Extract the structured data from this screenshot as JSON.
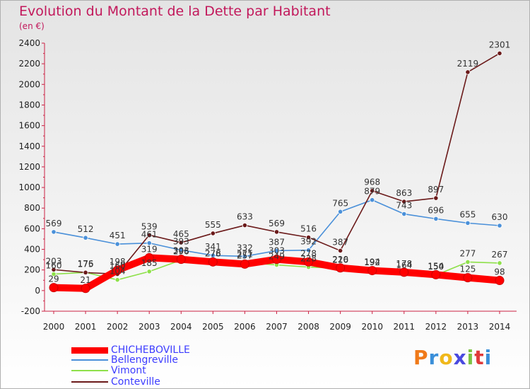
{
  "title": "Evolution du Montant de la Dette par Habitant",
  "subtitle": "(en €)",
  "logo_text": "Proxiti",
  "chart_data": {
    "type": "line",
    "title": "Evolution du Montant de la Dette par Habitant",
    "subtitle": "(en €)",
    "xlabel": "",
    "ylabel": "",
    "x": [
      "2000",
      "2001",
      "2002",
      "2003",
      "2004",
      "2005",
      "2006",
      "2007",
      "2008",
      "2009",
      "2010",
      "2011",
      "2012",
      "2013",
      "2014"
    ],
    "ylim": [
      -200,
      2400
    ],
    "yticks": [
      -200,
      0,
      200,
      400,
      600,
      800,
      1000,
      1200,
      1400,
      1600,
      1800,
      2000,
      2200,
      2400
    ],
    "grid": false,
    "legend_position": "bottom-left",
    "series": [
      {
        "name": "CHICHEBOVILLE",
        "color": "#ff0000",
        "values": [
          29,
          21,
          198,
          319,
          303,
          278,
          257,
          303,
          278,
          220,
          194,
          178,
          154,
          125,
          98
        ]
      },
      {
        "name": "Bellengreville",
        "color": "#4a90d9",
        "values": [
          569,
          512,
          451,
          461,
          393,
          341,
          332,
          387,
          392,
          765,
          879,
          743,
          696,
          655,
          630
        ]
      },
      {
        "name": "Vimont",
        "color": "#8ee04a",
        "values": [
          160,
          176,
          104,
          185,
          296,
          276,
          271,
          249,
          228,
          216,
          192,
          164,
          150,
          277,
          267
        ]
      },
      {
        "name": "Conteville",
        "color": "#6b1a1a",
        "values": [
          203,
          175,
          160,
          539,
          465,
          555,
          633,
          569,
          516,
          387,
          968,
          863,
          897,
          2119,
          2301
        ]
      }
    ]
  }
}
